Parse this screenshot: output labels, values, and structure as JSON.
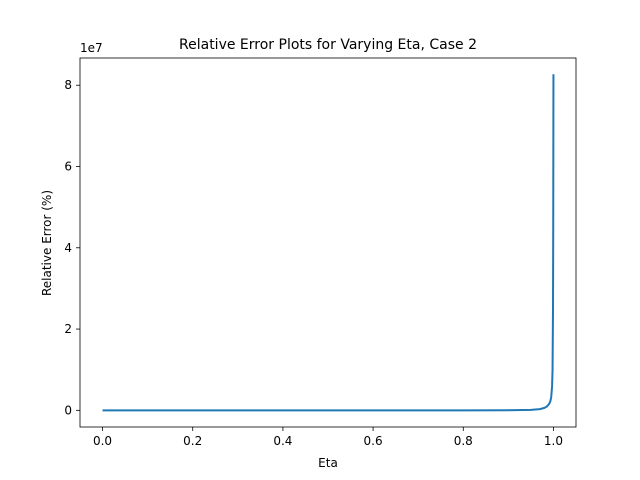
{
  "chart_data": {
    "type": "line",
    "title": "Relative Error Plots for Varying Eta, Case 2",
    "xlabel": "Eta",
    "ylabel": "Relative Error (%)",
    "y_offset_label": "1e7",
    "xlim": [
      -0.05,
      1.05
    ],
    "ylim": [
      -4100000,
      86700000
    ],
    "x_ticks": [
      0.0,
      0.2,
      0.4,
      0.6,
      0.8,
      1.0
    ],
    "x_tick_labels": [
      "0.0",
      "0.2",
      "0.4",
      "0.6",
      "0.8",
      "1.0"
    ],
    "y_ticks": [
      0,
      20000000,
      40000000,
      60000000,
      80000000
    ],
    "y_tick_labels": [
      "0",
      "2",
      "4",
      "6",
      "8"
    ],
    "grid": false,
    "legend": "none",
    "series": [
      {
        "color": "#1f77b4",
        "x": [
          0.0,
          0.1,
          0.2,
          0.3,
          0.4,
          0.5,
          0.6,
          0.7,
          0.8,
          0.9,
          0.95,
          0.97,
          0.98,
          0.985,
          0.99,
          0.993,
          0.995,
          0.997,
          0.998,
          0.999,
          0.9995,
          1.0
        ],
        "y": [
          0,
          1,
          5,
          20,
          60,
          150,
          400,
          1200,
          5000,
          30000,
          120000,
          300000,
          600000,
          900000,
          1500000,
          2200000,
          3200000,
          6000000,
          10000000,
          25000000,
          45000000,
          82700000
        ]
      }
    ]
  }
}
